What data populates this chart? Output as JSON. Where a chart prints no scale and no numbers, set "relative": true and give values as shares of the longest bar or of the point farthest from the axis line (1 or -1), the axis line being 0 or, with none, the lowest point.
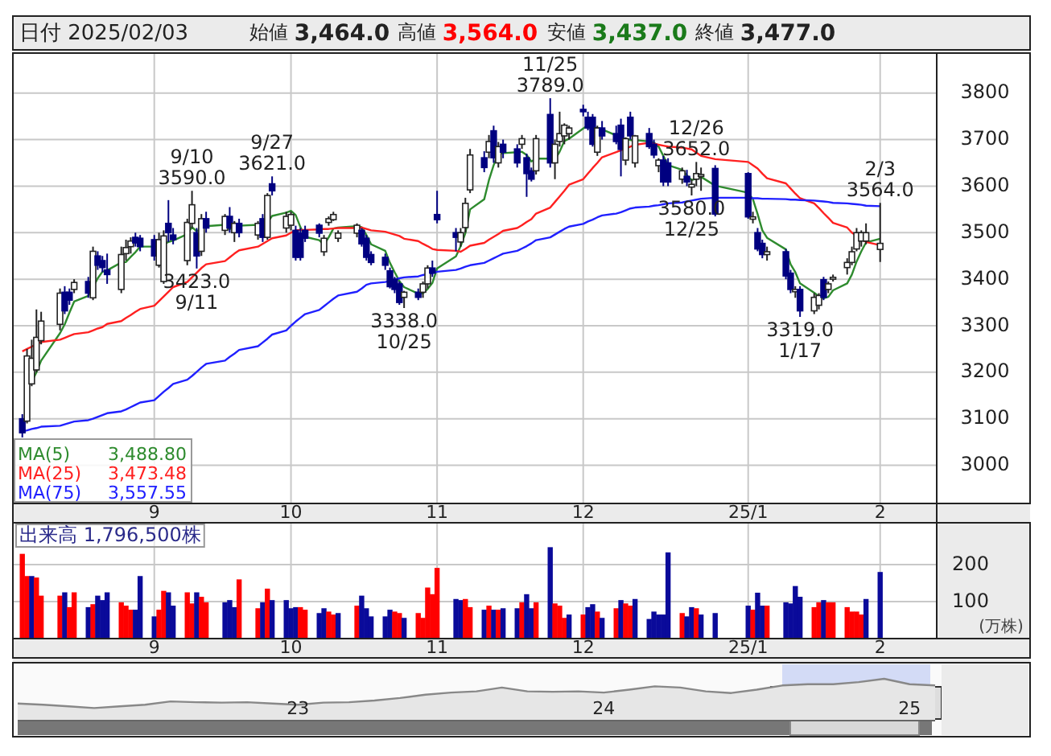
{
  "chart_data": [
    {
      "type": "candlestick",
      "title": "日付 2025/02/03",
      "annotations": [
        "始値 3,464.0",
        "高値 3,564.0",
        "安値 3,437.0",
        "終値 3,477.0",
        {
          "text": "9/10\n3590.0",
          "x": "2024-09-10",
          "y": 3590
        },
        {
          "text": "3423.0\n9/11",
          "x": "2024-09-11",
          "y": 3423
        },
        {
          "text": "9/27\n3621.0",
          "x": "2024-09-27",
          "y": 3621
        },
        {
          "text": "3338.0\n10/25",
          "x": "2024-10-25",
          "y": 3338
        },
        {
          "text": "11/25\n3789.0",
          "x": "2024-11-25",
          "y": 3789
        },
        {
          "text": "3580.0\n12/25",
          "x": "2024-12-25",
          "y": 3580
        },
        {
          "text": "12/26\n3652.0",
          "x": "2024-12-26",
          "y": 3652
        },
        {
          "text": "3319.0\n1/17",
          "x": "2025-01-17",
          "y": 3319
        },
        {
          "text": "2/3\n3564.0",
          "x": "2025-02-03",
          "y": 3564
        }
      ],
      "x": [
        "2024-08-05",
        "2024-08-06",
        "2024-08-07",
        "2024-08-08",
        "2024-08-09",
        "2024-08-13",
        "2024-08-14",
        "2024-08-15",
        "2024-08-16",
        "2024-08-19",
        "2024-08-20",
        "2024-08-21",
        "2024-08-22",
        "2024-08-23",
        "2024-08-26",
        "2024-08-27",
        "2024-08-28",
        "2024-08-29",
        "2024-08-30",
        "2024-09-02",
        "2024-09-03",
        "2024-09-04",
        "2024-09-05",
        "2024-09-06",
        "2024-09-09",
        "2024-09-10",
        "2024-09-11",
        "2024-09-12",
        "2024-09-13",
        "2024-09-17",
        "2024-09-18",
        "2024-09-19",
        "2024-09-20",
        "2024-09-24",
        "2024-09-25",
        "2024-09-26",
        "2024-09-27",
        "2024-09-30",
        "2024-10-01",
        "2024-10-02",
        "2024-10-03",
        "2024-10-04",
        "2024-10-07",
        "2024-10-08",
        "2024-10-09",
        "2024-10-10",
        "2024-10-11",
        "2024-10-15",
        "2024-10-16",
        "2024-10-17",
        "2024-10-18",
        "2024-10-21",
        "2024-10-22",
        "2024-10-23",
        "2024-10-24",
        "2024-10-25",
        "2024-10-28",
        "2024-10-29",
        "2024-10-30",
        "2024-10-31",
        "2024-11-01",
        "2024-11-05",
        "2024-11-06",
        "2024-11-07",
        "2024-11-08",
        "2024-11-11",
        "2024-11-12",
        "2024-11-13",
        "2024-11-14",
        "2024-11-15",
        "2024-11-18",
        "2024-11-19",
        "2024-11-20",
        "2024-11-21",
        "2024-11-22",
        "2024-11-25",
        "2024-11-26",
        "2024-11-27",
        "2024-11-28",
        "2024-11-29",
        "2024-12-02",
        "2024-12-03",
        "2024-12-04",
        "2024-12-05",
        "2024-12-06",
        "2024-12-09",
        "2024-12-10",
        "2024-12-11",
        "2024-12-12",
        "2024-12-13",
        "2024-12-16",
        "2024-12-17",
        "2024-12-18",
        "2024-12-19",
        "2024-12-20",
        "2024-12-23",
        "2024-12-24",
        "2024-12-25",
        "2024-12-26",
        "2024-12-27",
        "2024-12-30",
        "2025-01-06",
        "2025-01-07",
        "2025-01-08",
        "2025-01-09",
        "2025-01-10",
        "2025-01-14",
        "2025-01-15",
        "2025-01-16",
        "2025-01-17",
        "2025-01-20",
        "2025-01-21",
        "2025-01-22",
        "2025-01-23",
        "2025-01-24",
        "2025-01-27",
        "2025-01-28",
        "2025-01-29",
        "2025-01-30",
        "2025-01-31",
        "2025-02-03"
      ],
      "ohlc": [
        [
          3100,
          3110,
          3060,
          3070
        ],
        [
          3095,
          3250,
          3090,
          3235
        ],
        [
          3175,
          3270,
          3170,
          3230
        ],
        [
          3205,
          3335,
          3200,
          3275
        ],
        [
          3268,
          3330,
          3260,
          3310
        ],
        [
          3303,
          3380,
          3290,
          3370
        ],
        [
          3372,
          3385,
          3325,
          3332
        ],
        [
          3372,
          3380,
          3345,
          3355
        ],
        [
          3378,
          3400,
          3370,
          3393
        ],
        [
          3395,
          3405,
          3360,
          3370
        ],
        [
          3360,
          3470,
          3355,
          3460
        ],
        [
          3450,
          3460,
          3420,
          3430
        ],
        [
          3440,
          3450,
          3415,
          3425
        ],
        [
          3420,
          3455,
          3390,
          3410
        ],
        [
          3378,
          3470,
          3370,
          3453
        ],
        [
          3455,
          3485,
          3440,
          3468
        ],
        [
          3470,
          3490,
          3455,
          3482
        ],
        [
          3490,
          3500,
          3470,
          3478
        ],
        [
          3488,
          3495,
          3460,
          3470
        ],
        [
          3485,
          3495,
          3440,
          3450
        ],
        [
          3430,
          3500,
          3425,
          3485
        ],
        [
          3395,
          3505,
          3390,
          3493
        ],
        [
          3520,
          3570,
          3480,
          3500
        ],
        [
          3495,
          3510,
          3475,
          3485
        ],
        [
          3440,
          3530,
          3430,
          3522
        ],
        [
          3520,
          3590,
          3510,
          3560
        ],
        [
          3500,
          3510,
          3423,
          3450
        ],
        [
          3460,
          3540,
          3450,
          3530
        ],
        [
          3530,
          3545,
          3500,
          3510
        ],
        [
          3505,
          3540,
          3495,
          3535
        ],
        [
          3535,
          3555,
          3500,
          3510
        ],
        [
          3500,
          3525,
          3480,
          3520
        ],
        [
          3520,
          3530,
          3490,
          3500
        ],
        [
          3495,
          3525,
          3485,
          3520
        ],
        [
          3530,
          3540,
          3480,
          3490
        ],
        [
          3490,
          3585,
          3485,
          3580
        ],
        [
          3605,
          3621,
          3580,
          3590
        ],
        [
          3510,
          3545,
          3500,
          3535
        ],
        [
          3516,
          3545,
          3505,
          3539
        ],
        [
          3505,
          3515,
          3440,
          3447
        ],
        [
          3499,
          3510,
          3440,
          3447
        ],
        [
          3505,
          3515,
          3480,
          3488
        ],
        [
          3516,
          3520,
          3490,
          3499
        ],
        [
          3459,
          3495,
          3450,
          3488
        ],
        [
          3522,
          3535,
          3515,
          3530
        ],
        [
          3528,
          3545,
          3525,
          3539
        ],
        [
          3488,
          3505,
          3480,
          3499
        ],
        [
          3499,
          3520,
          3490,
          3516
        ],
        [
          3505,
          3510,
          3470,
          3476
        ],
        [
          3488,
          3495,
          3440,
          3447
        ],
        [
          3453,
          3460,
          3430,
          3436
        ],
        [
          3447,
          3455,
          3420,
          3430
        ],
        [
          3418,
          3425,
          3380,
          3384
        ],
        [
          3400,
          3405,
          3370,
          3378
        ],
        [
          3390,
          3395,
          3345,
          3350
        ],
        [
          3361,
          3375,
          3338,
          3372
        ],
        [
          3372,
          3380,
          3355,
          3361
        ],
        [
          3372,
          3395,
          3360,
          3390
        ],
        [
          3390,
          3430,
          3380,
          3424
        ],
        [
          3424,
          3440,
          3405,
          3413
        ],
        [
          3539,
          3590,
          3520,
          3528
        ],
        [
          3500,
          3510,
          3460,
          3490
        ],
        [
          3480,
          3510,
          3470,
          3500
        ],
        [
          3511,
          3575,
          3500,
          3563
        ],
        [
          3592,
          3680,
          3585,
          3667
        ],
        [
          3661,
          3675,
          3630,
          3640
        ],
        [
          3673,
          3710,
          3660,
          3696
        ],
        [
          3719,
          3730,
          3650,
          3661
        ],
        [
          3650,
          3695,
          3640,
          3685
        ],
        [
          3690,
          3700,
          3660,
          3673
        ],
        [
          3680,
          3690,
          3640,
          3650
        ],
        [
          3690,
          3710,
          3680,
          3702
        ],
        [
          3661,
          3670,
          3577,
          3627
        ],
        [
          3633,
          3640,
          3610,
          3615
        ],
        [
          3633,
          3710,
          3625,
          3702
        ],
        [
          3754,
          3789,
          3640,
          3650
        ],
        [
          3650,
          3700,
          3615,
          3690
        ],
        [
          3696,
          3760,
          3685,
          3713
        ],
        [
          3708,
          3735,
          3690,
          3731
        ],
        [
          3713,
          3730,
          3700,
          3725
        ],
        [
          3765,
          3775,
          3750,
          3760
        ],
        [
          3748,
          3760,
          3720,
          3725
        ],
        [
          3748,
          3755,
          3685,
          3690
        ],
        [
          3673,
          3730,
          3665,
          3725
        ],
        [
          3725,
          3740,
          3700,
          3708
        ],
        [
          3713,
          3730,
          3690,
          3696
        ],
        [
          3731,
          3745,
          3621,
          3679
        ],
        [
          3656,
          3705,
          3645,
          3702
        ],
        [
          3748,
          3760,
          3700,
          3708
        ],
        [
          3650,
          3710,
          3640,
          3708
        ],
        [
          3713,
          3725,
          3680,
          3685
        ],
        [
          3690,
          3700,
          3660,
          3667
        ],
        [
          3644,
          3660,
          3630,
          3656
        ],
        [
          3656,
          3665,
          3600,
          3609
        ],
        [
          3650,
          3660,
          3600,
          3609
        ],
        [
          3615,
          3640,
          3605,
          3633
        ],
        [
          3621,
          3635,
          3600,
          3609
        ],
        [
          3598,
          3615,
          3580,
          3604
        ],
        [
          3615,
          3652,
          3600,
          3627
        ],
        [
          3621,
          3640,
          3590,
          3625
        ],
        [
          3638,
          3645,
          3535,
          3540
        ],
        [
          3627,
          3630,
          3530,
          3534
        ],
        [
          3529,
          3545,
          3520,
          3534
        ],
        [
          3500,
          3510,
          3460,
          3465
        ],
        [
          3477,
          3485,
          3445,
          3453
        ],
        [
          3453,
          3470,
          3440,
          3459
        ],
        [
          3459,
          3465,
          3400,
          3407
        ],
        [
          3413,
          3420,
          3370,
          3378
        ],
        [
          3373,
          3385,
          3360,
          3378
        ],
        [
          3378,
          3385,
          3319,
          3332
        ],
        [
          3332,
          3370,
          3325,
          3361
        ],
        [
          3344,
          3370,
          3335,
          3365
        ],
        [
          3399,
          3405,
          3355,
          3361
        ],
        [
          3378,
          3395,
          3370,
          3390
        ],
        [
          3400,
          3410,
          3395,
          3404
        ],
        [
          3425,
          3445,
          3410,
          3436
        ],
        [
          3436,
          3470,
          3430,
          3459
        ],
        [
          3465,
          3510,
          3460,
          3500
        ],
        [
          3482,
          3505,
          3470,
          3500
        ],
        [
          3482,
          3520,
          3475,
          3500
        ],
        [
          3464,
          3564,
          3437,
          3477
        ]
      ],
      "series": [
        {
          "name": "MA(5) 3,488.80",
          "type": "line",
          "color": "#2e8b2e",
          "values": [
            null,
            3170,
            3180,
            3200,
            3225,
            3284,
            3303,
            3328,
            3352,
            3364,
            3382,
            3402,
            3416,
            3419,
            3436,
            3437,
            3448,
            3458,
            3470,
            3470,
            3473,
            3475,
            3480,
            3483,
            3497,
            3512,
            3503,
            3509,
            3514,
            3517,
            3507,
            3521,
            3515,
            3517,
            3508,
            3522,
            3536,
            3543,
            3547,
            3538,
            3512,
            3491,
            3484,
            3474,
            3490,
            3509,
            3511,
            3514,
            3512,
            3495,
            3475,
            3461,
            3435,
            3415,
            3396,
            3383,
            3369,
            3370,
            3379,
            3392,
            3423,
            3449,
            3471,
            3499,
            3550,
            3572,
            3613,
            3645,
            3670,
            3671,
            3673,
            3674,
            3667,
            3653,
            3659,
            3659,
            3657,
            3674,
            3697,
            3702,
            3724,
            3731,
            3726,
            3725,
            3722,
            3709,
            3700,
            3702,
            3699,
            3699,
            3696,
            3694,
            3685,
            3665,
            3645,
            3635,
            3623,
            3613,
            3616,
            3620,
            3601,
            3586,
            3572,
            3540,
            3505,
            3489,
            3464,
            3432,
            3415,
            3391,
            3371,
            3363,
            3359,
            3362,
            3376,
            3391,
            3410,
            3438,
            3460,
            3479,
            3487
          ]
        },
        {
          "name": "MA(25) 3,473.48",
          "type": "line",
          "color": "#ff2020",
          "values": [
            3245,
            3250,
            3255,
            3260,
            3265,
            3270,
            3274,
            3278,
            3282,
            3286,
            3290,
            3294,
            3297,
            3304,
            3310,
            3317,
            3323,
            3330,
            3336,
            3343,
            3353,
            3363,
            3373,
            3383,
            3394,
            3404,
            3414,
            3424,
            3432,
            3439,
            3447,
            3455,
            3462,
            3470,
            3476,
            3482,
            3488,
            3494,
            3500,
            3505,
            3506,
            3506,
            3507,
            3508,
            3508,
            3509,
            3510,
            3510,
            3511,
            3508,
            3505,
            3502,
            3499,
            3496,
            3493,
            3487,
            3482,
            3476,
            3471,
            3465,
            3463,
            3461,
            3459,
            3465,
            3472,
            3478,
            3485,
            3491,
            3497,
            3504,
            3510,
            3516,
            3523,
            3529,
            3541,
            3554,
            3566,
            3578,
            3590,
            3603,
            3615,
            3627,
            3639,
            3650,
            3662,
            3673,
            3677,
            3681,
            3685,
            3689,
            3693,
            3691,
            3689,
            3687,
            3685,
            3683,
            3681,
            3679,
            3672,
            3665,
            3658,
            3652,
            3645,
            3638,
            3627,
            3617,
            3606,
            3595,
            3584,
            3574,
            3563,
            3553,
            3542,
            3532,
            3521,
            3511,
            3500,
            3493,
            3487,
            3480,
            3473
          ]
        },
        {
          "name": "MA(75) 3,557.55",
          "type": "line",
          "color": "#2020ff",
          "values": [
            3073,
            3075,
            3078,
            3080,
            3083,
            3085,
            3088,
            3091,
            3094,
            3097,
            3100,
            3104,
            3108,
            3112,
            3116,
            3120,
            3125,
            3130,
            3135,
            3140,
            3149,
            3158,
            3166,
            3175,
            3184,
            3192,
            3201,
            3210,
            3218,
            3225,
            3233,
            3240,
            3248,
            3256,
            3264,
            3272,
            3281,
            3290,
            3300,
            3309,
            3317,
            3325,
            3334,
            3342,
            3350,
            3358,
            3365,
            3373,
            3380,
            3388,
            3391,
            3394,
            3396,
            3399,
            3402,
            3404,
            3406,
            3409,
            3411,
            3413,
            3416,
            3420,
            3423,
            3427,
            3430,
            3435,
            3440,
            3445,
            3450,
            3455,
            3461,
            3466,
            3471,
            3477,
            3484,
            3490,
            3496,
            3502,
            3508,
            3513,
            3519,
            3524,
            3528,
            3533,
            3537,
            3541,
            3544,
            3548,
            3552,
            3554,
            3556,
            3558,
            3559,
            3561,
            3563,
            3565,
            3567,
            3569,
            3571,
            3573,
            3575,
            3575,
            3574,
            3574,
            3573,
            3573,
            3572,
            3571,
            3571,
            3570,
            3569,
            3568,
            3567,
            3566,
            3564,
            3563,
            3562,
            3561,
            3560,
            3558,
            3557
          ]
        }
      ],
      "xlim": [
        "2024-08-03",
        "2025-02-15"
      ],
      "ylim": [
        2918,
        3886
      ],
      "yticks": [
        3000,
        3100,
        3200,
        3300,
        3400,
        3500,
        3600,
        3700,
        3800
      ],
      "xticks": [
        {
          "value": "2024-09-02",
          "label": "9"
        },
        {
          "value": "2024-10-01",
          "label": "10"
        },
        {
          "value": "2024-11-01",
          "label": "11"
        },
        {
          "value": "2024-12-02",
          "label": "12"
        },
        {
          "value": "2025-01-06",
          "label": "25/1"
        },
        {
          "value": "2025-02-03",
          "label": "2"
        }
      ],
      "grid": true
    },
    {
      "type": "bar",
      "title": "出来高 1,796,500株",
      "ylabel": "(万株)",
      "xlim": [
        "2024-08-03",
        "2025-02-15"
      ],
      "x": [
        "2024-08-05",
        "2024-08-06",
        "2024-08-07",
        "2024-08-08",
        "2024-08-09",
        "2024-08-13",
        "2024-08-14",
        "2024-08-15",
        "2024-08-16",
        "2024-08-19",
        "2024-08-20",
        "2024-08-21",
        "2024-08-22",
        "2024-08-23",
        "2024-08-26",
        "2024-08-27",
        "2024-08-28",
        "2024-08-29",
        "2024-08-30",
        "2024-09-02",
        "2024-09-03",
        "2024-09-04",
        "2024-09-05",
        "2024-09-06",
        "2024-09-09",
        "2024-09-10",
        "2024-09-11",
        "2024-09-12",
        "2024-09-13",
        "2024-09-17",
        "2024-09-18",
        "2024-09-19",
        "2024-09-20",
        "2024-09-24",
        "2024-09-25",
        "2024-09-26",
        "2024-09-27",
        "2024-09-30",
        "2024-10-01",
        "2024-10-02",
        "2024-10-03",
        "2024-10-04",
        "2024-10-07",
        "2024-10-08",
        "2024-10-09",
        "2024-10-10",
        "2024-10-11",
        "2024-10-15",
        "2024-10-16",
        "2024-10-17",
        "2024-10-18",
        "2024-10-21",
        "2024-10-22",
        "2024-10-23",
        "2024-10-24",
        "2024-10-25",
        "2024-10-28",
        "2024-10-29",
        "2024-10-30",
        "2024-10-31",
        "2024-11-01",
        "2024-11-05",
        "2024-11-06",
        "2024-11-07",
        "2024-11-08",
        "2024-11-11",
        "2024-11-12",
        "2024-11-13",
        "2024-11-14",
        "2024-11-15",
        "2024-11-18",
        "2024-11-19",
        "2024-11-20",
        "2024-11-21",
        "2024-11-22",
        "2024-11-25",
        "2024-11-26",
        "2024-11-27",
        "2024-11-28",
        "2024-11-29",
        "2024-12-02",
        "2024-12-03",
        "2024-12-04",
        "2024-12-05",
        "2024-12-06",
        "2024-12-09",
        "2024-12-10",
        "2024-12-11",
        "2024-12-12",
        "2024-12-13",
        "2024-12-16",
        "2024-12-17",
        "2024-12-18",
        "2024-12-19",
        "2024-12-20",
        "2024-12-23",
        "2024-12-24",
        "2024-12-25",
        "2024-12-26",
        "2024-12-27",
        "2024-12-30",
        "2025-01-06",
        "2025-01-07",
        "2025-01-08",
        "2025-01-09",
        "2025-01-10",
        "2025-01-14",
        "2025-01-15",
        "2025-01-16",
        "2025-01-17",
        "2025-01-20",
        "2025-01-21",
        "2025-01-22",
        "2025-01-23",
        "2025-01-24",
        "2025-01-27",
        "2025-01-28",
        "2025-01-29",
        "2025-01-30",
        "2025-01-31",
        "2025-02-03"
      ],
      "values": [
        229,
        169,
        169,
        165,
        116,
        116,
        125,
        85,
        125,
        85,
        93,
        116,
        104,
        125,
        98,
        89,
        78,
        78,
        169,
        60,
        78,
        129,
        125,
        89,
        125,
        95,
        125,
        113,
        98,
        98,
        104,
        85,
        160,
        82,
        98,
        135,
        104,
        104,
        82,
        85,
        85,
        78,
        69,
        82,
        73,
        65,
        69,
        89,
        116,
        82,
        60,
        60,
        78,
        73,
        69,
        56,
        69,
        56,
        138,
        120,
        191,
        107,
        104,
        107,
        85,
        78,
        89,
        78,
        78,
        82,
        82,
        98,
        120,
        82,
        98,
        247,
        95,
        89,
        56,
        65,
        65,
        85,
        93,
        73,
        56,
        82,
        104,
        95,
        89,
        107,
        53,
        73,
        65,
        65,
        233,
        69,
        60,
        85,
        82,
        65,
        69,
        89,
        78,
        124,
        89,
        89,
        98,
        95,
        142,
        113,
        85,
        98,
        104,
        98,
        98,
        85,
        73,
        73,
        65,
        107,
        180
      ],
      "colors": [
        "#ff0000",
        "#ff0000",
        "#0a0a9a",
        "#ff0000",
        "#ff0000",
        "#ff0000",
        "#0a0a9a",
        "#ff0000",
        "#ff0000",
        "#0a0a9a",
        "#ff0000",
        "#0a0a9a",
        "#0a0a9a",
        "#0a0a9a",
        "#ff0000",
        "#ff0000",
        "#ff0000",
        "#0a0a9a",
        "#0a0a9a",
        "#0a0a9a",
        "#ff0000",
        "#ff0000",
        "#0a0a9a",
        "#0a0a9a",
        "#ff0000",
        "#ff0000",
        "#0a0a9a",
        "#ff0000",
        "#ff0000",
        "#0a0a9a",
        "#0a0a9a",
        "#0a0a9a",
        "#ff0000",
        "#ff0000",
        "#0a0a9a",
        "#ff0000",
        "#0a0a9a",
        "#0a0a9a",
        "#0a0a9a",
        "#0a0a9a",
        "#ff0000",
        "#ff0000",
        "#0a0a9a",
        "#0a0a9a",
        "#ff0000",
        "#ff0000",
        "#0a0a9a",
        "#ff0000",
        "#0a0a9a",
        "#0a0a9a",
        "#0a0a9a",
        "#0a0a9a",
        "#0a0a9a",
        "#ff0000",
        "#ff0000",
        "#0a0a9a",
        "#ff0000",
        "#ff0000",
        "#ff0000",
        "#ff0000",
        "#ff0000",
        "#0a0a9a",
        "#0a0a9a",
        "#ff0000",
        "#ff0000",
        "#0a0a9a",
        "#ff0000",
        "#0a0a9a",
        "#ff0000",
        "#0a0a9a",
        "#0a0a9a",
        "#ff0000",
        "#0a0a9a",
        "#0a0a9a",
        "#ff0000",
        "#0a0a9a",
        "#ff0000",
        "#ff0000",
        "#ff0000",
        "#0a0a9a",
        "#ff0000",
        "#0a0a9a",
        "#0a0a9a",
        "#ff0000",
        "#0a0a9a",
        "#ff0000",
        "#0a0a9a",
        "#ff0000",
        "#ff0000",
        "#0a0a9a",
        "#0a0a9a",
        "#0a0a9a",
        "#0a0a9a",
        "#0a0a9a",
        "#0a0a9a",
        "#ff0000",
        "#0a0a9a",
        "#0a0a9a",
        "#ff0000",
        "#0a0a9a",
        "#0a0a9a",
        "#0a0a9a",
        "#ff0000",
        "#0a0a9a",
        "#0a0a9a",
        "#ff0000",
        "#0a0a9a",
        "#0a0a9a",
        "#0a0a9a",
        "#0a0a9a",
        "#ff0000",
        "#ff0000",
        "#0a0a9a",
        "#ff0000",
        "#ff0000",
        "#ff0000",
        "#ff0000",
        "#ff0000",
        "#ff0000",
        "#0a0a9a",
        "#0a0a9a"
      ],
      "ylim": [
        0,
        313
      ],
      "yticks": [
        100,
        200
      ],
      "xticks": [
        {
          "value": "2024-09-02",
          "label": "9"
        },
        {
          "value": "2024-10-01",
          "label": "10"
        },
        {
          "value": "2024-11-01",
          "label": "11"
        },
        {
          "value": "2024-12-02",
          "label": "12"
        },
        {
          "value": "2025-01-06",
          "label": "25/1"
        },
        {
          "value": "2025-02-03",
          "label": "2"
        }
      ],
      "grid": true
    },
    {
      "type": "area",
      "relative": true,
      "color": "#888888",
      "categories": [
        null,
        null,
        null,
        null,
        null,
        null,
        null,
        null,
        null,
        null,
        null,
        "23",
        null,
        null,
        null,
        null,
        null,
        null,
        null,
        null,
        null,
        null,
        null,
        "24",
        null,
        null,
        null,
        null,
        null,
        null,
        null,
        null,
        null,
        null,
        null,
        "25",
        null
      ],
      "values": [
        0.41,
        0.38,
        0.34,
        0.3,
        0.34,
        0.38,
        0.46,
        0.44,
        0.43,
        0.44,
        0.41,
        0.38,
        0.43,
        0.44,
        0.48,
        0.54,
        0.62,
        0.67,
        0.7,
        0.79,
        0.7,
        0.69,
        0.7,
        0.67,
        0.74,
        0.82,
        0.79,
        0.7,
        0.66,
        0.74,
        0.84,
        0.87,
        0.87,
        0.92,
        1,
        0.87,
        0.84
      ]
    }
  ]
}
